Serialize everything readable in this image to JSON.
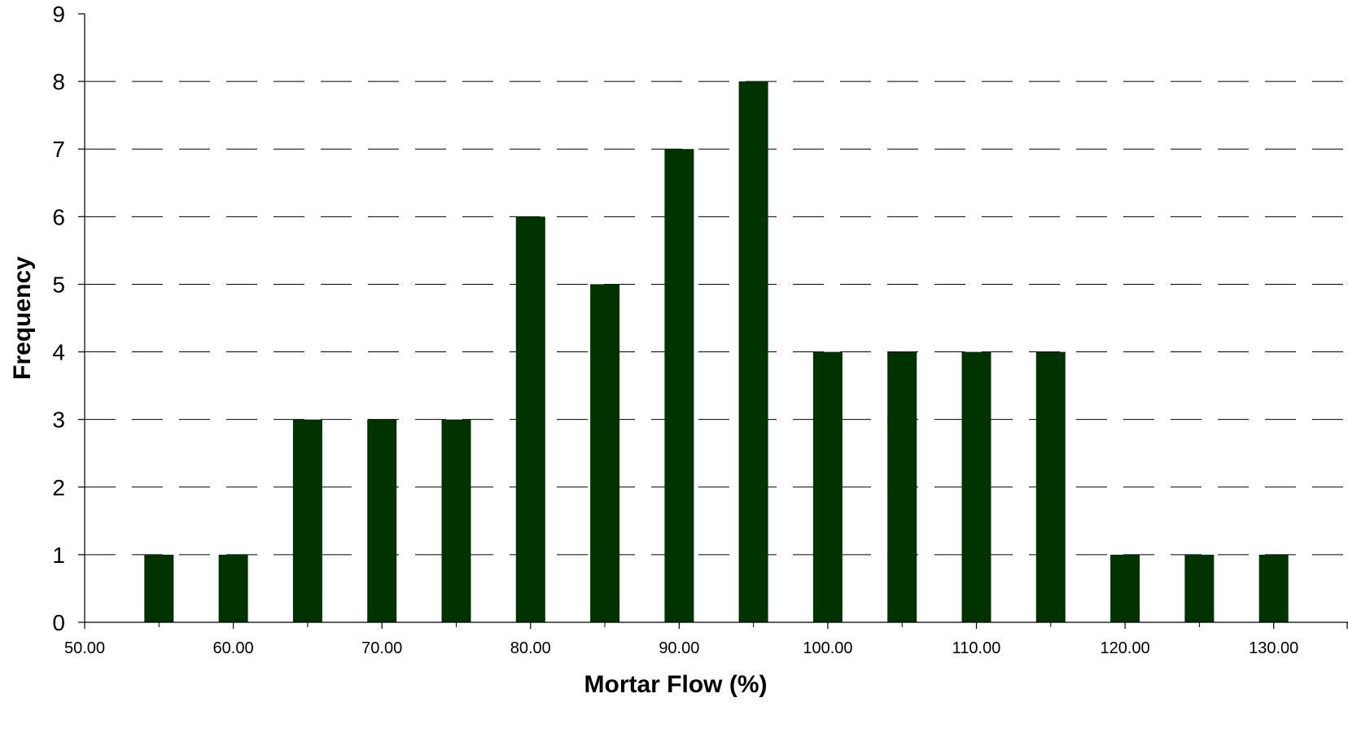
{
  "chart_data": {
    "type": "bar",
    "title": "",
    "xlabel": "Mortar Flow (%)",
    "ylabel": "Frequency",
    "xlim": [
      50,
      135
    ],
    "ylim": [
      0,
      9
    ],
    "x_ticks": [
      50,
      60,
      70,
      80,
      90,
      100,
      110,
      120,
      130
    ],
    "x_tick_labels": [
      "50.00",
      "60.00",
      "70.00",
      "80.00",
      "90.00",
      "100.00",
      "110.00",
      "120.00",
      "130.00"
    ],
    "y_ticks": [
      0,
      1,
      2,
      3,
      4,
      5,
      6,
      7,
      8,
      9
    ],
    "y_tick_labels": [
      "0",
      "1",
      "2",
      "3",
      "4",
      "5",
      "6",
      "7",
      "8",
      "9"
    ],
    "bin_width": 5,
    "x": [
      55,
      60,
      65,
      70,
      75,
      80,
      85,
      90,
      95,
      100,
      105,
      110,
      115,
      120,
      125,
      130
    ],
    "values": [
      1,
      1,
      3,
      3,
      3,
      6,
      5,
      7,
      8,
      4,
      4,
      4,
      4,
      1,
      1,
      1
    ],
    "bar_color": "#003300",
    "grid": "horizontal dashed",
    "legend": "none"
  }
}
